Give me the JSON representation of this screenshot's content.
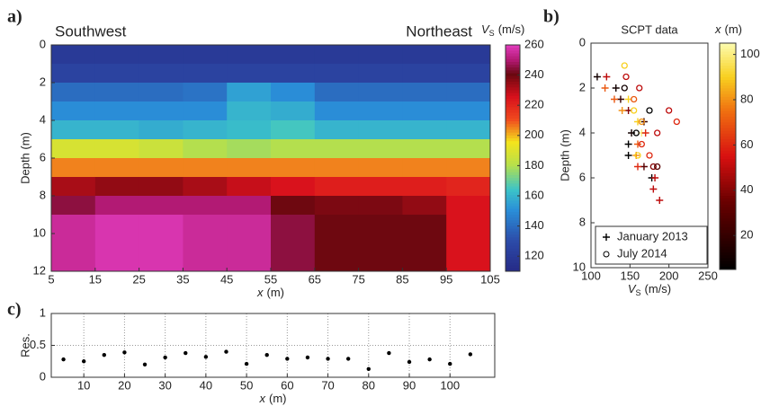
{
  "chart_data": [
    {
      "type": "heatmap",
      "panel_label": "a)",
      "annotations": [
        "Southwest",
        "Northeast"
      ],
      "x_edges": [
        5,
        15,
        25,
        35,
        45,
        55,
        65,
        75,
        85,
        95,
        105
      ],
      "y_edges": [
        0,
        1,
        2,
        3,
        4,
        5,
        6,
        7,
        8,
        9,
        10,
        11,
        12
      ],
      "z": [
        [
          120,
          120,
          120,
          120,
          120,
          120,
          120,
          120,
          120,
          120
        ],
        [
          125,
          125,
          125,
          125,
          125,
          125,
          125,
          125,
          125,
          125
        ],
        [
          140,
          140,
          140,
          142,
          155,
          150,
          140,
          140,
          140,
          140
        ],
        [
          150,
          150,
          150,
          150,
          160,
          158,
          150,
          150,
          150,
          150
        ],
        [
          160,
          160,
          158,
          160,
          162,
          165,
          160,
          160,
          160,
          160
        ],
        [
          188,
          188,
          185,
          180,
          178,
          180,
          180,
          180,
          180,
          180
        ],
        [
          205,
          205,
          205,
          205,
          205,
          205,
          205,
          205,
          205,
          205
        ],
        [
          232,
          235,
          235,
          232,
          228,
          225,
          222,
          222,
          222,
          220
        ],
        [
          245,
          250,
          250,
          250,
          250,
          240,
          238,
          238,
          235,
          225
        ],
        [
          255,
          258,
          258,
          255,
          255,
          245,
          240,
          240,
          240,
          225
        ],
        [
          255,
          258,
          258,
          255,
          255,
          245,
          240,
          240,
          240,
          225
        ],
        [
          255,
          258,
          258,
          255,
          255,
          245,
          240,
          240,
          240,
          225
        ]
      ],
      "xlim": [
        5,
        105
      ],
      "xticks": [
        5,
        15,
        25,
        35,
        45,
        55,
        65,
        75,
        85,
        95,
        105
      ],
      "ylim": [
        0,
        12
      ],
      "y_inverted": true,
      "yticks": [
        0,
        2,
        4,
        6,
        8,
        10,
        12
      ],
      "xlabel": {
        "symbol": "x",
        "unit": "(m)"
      },
      "ylabel": "Depth (m)",
      "colorbar": {
        "label": {
          "symbol": "V",
          "subscript": "S",
          "unit": "(m/s)"
        },
        "clim": [
          110,
          260
        ],
        "ticks": [
          120,
          140,
          160,
          180,
          200,
          220,
          240,
          260
        ],
        "colormap": "jet-magenta"
      }
    },
    {
      "type": "scatter",
      "panel_label": "b)",
      "title": "SCPT data",
      "series": [
        {
          "name": "January 2013",
          "marker": "plus",
          "x": [
            108,
            120,
            118,
            132,
            138,
            130,
            148,
            148,
            140,
            168,
            160,
            165,
            152,
            170,
            148,
            160,
            148,
            158,
            168,
            160,
            178,
            182,
            180,
            188
          ],
          "y": [
            1.5,
            1.5,
            2.0,
            2.0,
            2.5,
            2.5,
            2.5,
            3.0,
            3.0,
            3.5,
            3.5,
            4.0,
            4.0,
            4.0,
            4.5,
            4.5,
            5.0,
            5.0,
            5.5,
            5.5,
            6.0,
            6.0,
            6.5,
            7.0
          ],
          "c": [
            10,
            50,
            70,
            10,
            20,
            70,
            90,
            40,
            80,
            20,
            90,
            100,
            10,
            60,
            5,
            70,
            5,
            80,
            30,
            60,
            5,
            50,
            50,
            50
          ]
        },
        {
          "name": "July 2014",
          "marker": "circle",
          "x": [
            143,
            145,
            143,
            162,
            155,
            155,
            175,
            200,
            210,
            165,
            185,
            158,
            165,
            160,
            175,
            180,
            185
          ],
          "y": [
            1.0,
            1.5,
            2.0,
            2.0,
            2.5,
            3.0,
            3.0,
            3.0,
            3.5,
            3.5,
            4.0,
            4.0,
            4.5,
            5.0,
            5.0,
            5.5,
            5.5
          ],
          "c": [
            90,
            50,
            10,
            50,
            70,
            90,
            5,
            50,
            60,
            80,
            50,
            5,
            60,
            90,
            60,
            40,
            30
          ]
        }
      ],
      "xlim": [
        100,
        250
      ],
      "xticks": [
        100,
        150,
        200,
        250
      ],
      "ylim": [
        0,
        10
      ],
      "y_inverted": true,
      "yticks": [
        0,
        2,
        4,
        6,
        8,
        10
      ],
      "xlabel": {
        "symbol": "V",
        "subscript": "S",
        "unit": "(m/s)"
      },
      "ylabel": "Depth (m)",
      "legend": "lower left",
      "colorbar": {
        "label": {
          "symbol": "x",
          "unit": "(m)"
        },
        "clim": [
          5,
          105
        ],
        "ticks": [
          20,
          40,
          60,
          80,
          100
        ],
        "colormap": "hot"
      }
    },
    {
      "type": "dots",
      "panel_label": "c)",
      "x": [
        5,
        10,
        15,
        20,
        25,
        30,
        35,
        40,
        45,
        50,
        55,
        60,
        65,
        70,
        75,
        80,
        85,
        90,
        95,
        100,
        105
      ],
      "values": [
        0.28,
        0.25,
        0.35,
        0.39,
        0.2,
        0.31,
        0.38,
        0.32,
        0.4,
        0.21,
        0.35,
        0.29,
        0.31,
        0.29,
        0.29,
        0.13,
        0.38,
        0.24,
        0.28,
        0.21,
        0.36
      ],
      "color": "#000000",
      "xlim": [
        2,
        111
      ],
      "xticks": [
        10,
        20,
        30,
        40,
        50,
        60,
        70,
        80,
        90,
        100
      ],
      "ylim": [
        0,
        1
      ],
      "yticks": [
        0,
        0.5,
        1
      ],
      "grid": true,
      "xlabel": {
        "symbol": "x",
        "unit": "(m)"
      },
      "ylabel": "Res."
    }
  ]
}
